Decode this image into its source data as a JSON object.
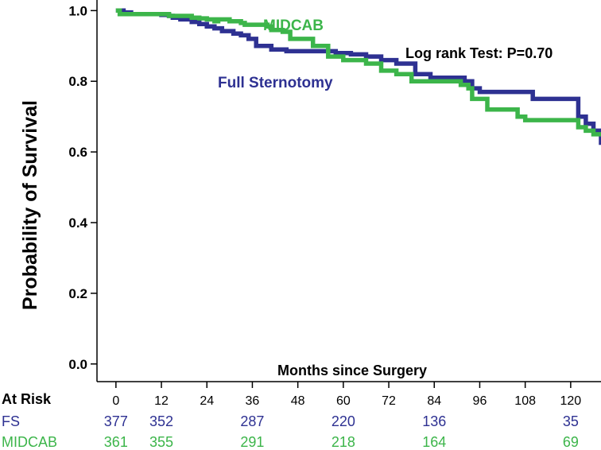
{
  "colors": {
    "fs": "#2e3192",
    "midcab": "#3cb54a",
    "axis": "#000000"
  },
  "chart_data": {
    "type": "line",
    "title": "",
    "xlabel": "Months since Surgery",
    "ylabel": "Probability of Survival",
    "xlim": [
      -5,
      128
    ],
    "ylim": [
      -0.05,
      1.03
    ],
    "xticks": [
      0,
      12,
      24,
      36,
      48,
      60,
      72,
      84,
      96,
      108,
      120
    ],
    "yticks": [
      0.0,
      0.2,
      0.4,
      0.6,
      0.8,
      1.0
    ],
    "ytick_labels": [
      "0.0",
      "0.2",
      "0.4",
      "0.6",
      "0.8",
      "1.0"
    ],
    "annotation": "Log rank Test: P=0.70",
    "series": [
      {
        "name": "Full Sternotomy",
        "color": "#2e3192",
        "x": [
          0,
          2,
          4,
          8,
          12,
          14,
          15,
          17,
          20,
          22,
          24,
          26,
          28,
          31,
          33,
          35,
          37,
          39,
          41,
          45,
          49,
          54,
          58,
          60,
          62,
          66,
          70,
          74,
          79,
          83,
          88,
          92,
          94,
          96,
          102,
          106,
          110,
          113,
          118,
          122,
          124,
          126,
          128
        ],
        "y": [
          1.0,
          0.995,
          0.99,
          0.99,
          0.988,
          0.985,
          0.98,
          0.975,
          0.968,
          0.962,
          0.955,
          0.95,
          0.942,
          0.935,
          0.93,
          0.92,
          0.9,
          0.9,
          0.89,
          0.885,
          0.885,
          0.885,
          0.88,
          0.88,
          0.876,
          0.87,
          0.86,
          0.85,
          0.82,
          0.81,
          0.81,
          0.8,
          0.78,
          0.77,
          0.77,
          0.77,
          0.75,
          0.75,
          0.75,
          0.7,
          0.68,
          0.66,
          0.62
        ]
      },
      {
        "name": "MIDCAB",
        "color": "#3cb54a",
        "x": [
          0,
          1,
          12,
          14,
          20,
          22,
          24,
          26,
          27,
          30,
          33,
          34,
          40,
          41,
          44,
          46,
          52,
          56,
          60,
          63,
          66,
          70,
          74,
          78,
          85,
          88,
          91,
          93,
          94,
          98,
          102,
          106,
          108,
          112,
          117,
          122,
          124,
          126,
          128
        ],
        "y": [
          1.0,
          0.99,
          0.99,
          0.985,
          0.98,
          0.978,
          0.975,
          0.97,
          0.975,
          0.97,
          0.965,
          0.96,
          0.955,
          0.945,
          0.94,
          0.92,
          0.9,
          0.87,
          0.86,
          0.86,
          0.85,
          0.83,
          0.82,
          0.8,
          0.8,
          0.8,
          0.79,
          0.78,
          0.75,
          0.72,
          0.72,
          0.7,
          0.69,
          0.69,
          0.69,
          0.67,
          0.66,
          0.65,
          0.65
        ]
      }
    ],
    "series_labels": {
      "midcab": "MIDCAB",
      "fs": "Full Sternotomy"
    },
    "at_risk": {
      "header": "At Risk",
      "rows": [
        {
          "name": "FS",
          "color": "#2e3192",
          "values": [
            {
              "x": 0,
              "label": "377"
            },
            {
              "x": 12,
              "label": "352"
            },
            {
              "x": 36,
              "label": "287"
            },
            {
              "x": 60,
              "label": "220"
            },
            {
              "x": 84,
              "label": "136"
            },
            {
              "x": 120,
              "label": "35"
            }
          ]
        },
        {
          "name": "MIDCAB",
          "color": "#3cb54a",
          "values": [
            {
              "x": 0,
              "label": "361"
            },
            {
              "x": 12,
              "label": "355"
            },
            {
              "x": 36,
              "label": "291"
            },
            {
              "x": 60,
              "label": "218"
            },
            {
              "x": 84,
              "label": "164"
            },
            {
              "x": 120,
              "label": "69"
            }
          ]
        }
      ]
    }
  }
}
